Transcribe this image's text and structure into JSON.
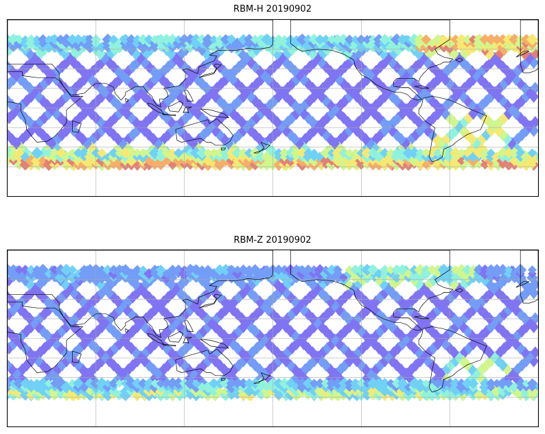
{
  "panels": [
    {
      "id": "rbm-h",
      "title": "RBM-H 20190902",
      "intensity": "high"
    },
    {
      "id": "rbm-z",
      "title": "RBM-Z 20190902",
      "intensity": "low"
    }
  ],
  "colormap": [
    "#6a5cf0",
    "#5b8cf5",
    "#59c8f5",
    "#7df0d8",
    "#c8f57a",
    "#f5e65a",
    "#f5a050",
    "#e06a5c"
  ],
  "projection": "PlateCarree, central longitude 180",
  "gridlines": "on",
  "coastlines": "on"
}
